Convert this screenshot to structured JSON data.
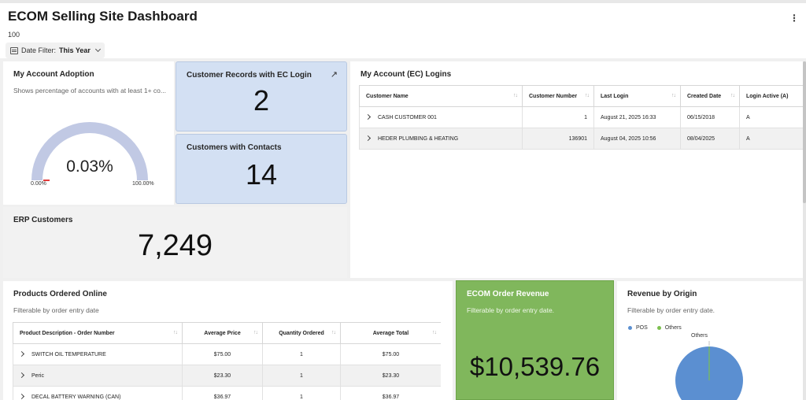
{
  "header": {
    "title": "ECOM Selling Site Dashboard",
    "subtitle": "100",
    "date_filter_label": "Date Filter:",
    "date_filter_value": "This Year"
  },
  "adoption": {
    "title": "My Account Adoption",
    "description": "Shows percentage of accounts with at least 1+ co...",
    "value": "0.03%",
    "min": "0.00%",
    "max": "100.00%",
    "fraction": 0.0003
  },
  "ec_login": {
    "title": "Customer Records with EC Login",
    "value": "2"
  },
  "contacts": {
    "title": "Customers with Contacts",
    "value": "14"
  },
  "erp": {
    "title": "ERP Customers",
    "value": "7,249"
  },
  "logins": {
    "title": "My Account (EC) Logins",
    "columns": [
      "Customer Name",
      "Customer Number",
      "Last Login",
      "Created Date",
      "Login Active (A)"
    ],
    "rows": [
      [
        "CASH CUSTOMER 001",
        "1",
        "August 21, 2025 16:33",
        "06/15/2018",
        "A"
      ],
      [
        "HEDER PLUMBING & HEATING",
        "136901",
        "August 04, 2025 10:56",
        "08/04/2025",
        "A"
      ]
    ]
  },
  "products": {
    "title": "Products Ordered Online",
    "description": "Filterable by order entry date",
    "columns": [
      "Product Description - Order Number",
      "Average Price",
      "Quantity Ordered",
      "Average Total"
    ],
    "rows": [
      [
        "SWITCH OIL TEMPERATURE",
        "$75.00",
        "1",
        "$75.00"
      ],
      [
        "Peric",
        "$23.30",
        "1",
        "$23.30"
      ],
      [
        "DECAL BATTERY WARNING (CAN)",
        "$36.97",
        "1",
        "$36.97"
      ]
    ]
  },
  "revenue": {
    "title": "ECOM Order Revenue",
    "description": "Filterable by order entry date.",
    "value": "$10,539.76"
  },
  "origin": {
    "title": "Revenue by Origin",
    "description": "Filterable by order entry date.",
    "legend": [
      {
        "label": "POS",
        "color": "#5b8fd1"
      },
      {
        "label": "Others",
        "color": "#7cc04f"
      }
    ],
    "slice_label": "Others"
  },
  "colors": {
    "gauge": "#c1c9e4",
    "gauge_marker": "#e23c3c",
    "kpi_blue": "#d3e0f3",
    "green": "#80b75c",
    "pos": "#5b8fd1",
    "others": "#7cc04f"
  }
}
